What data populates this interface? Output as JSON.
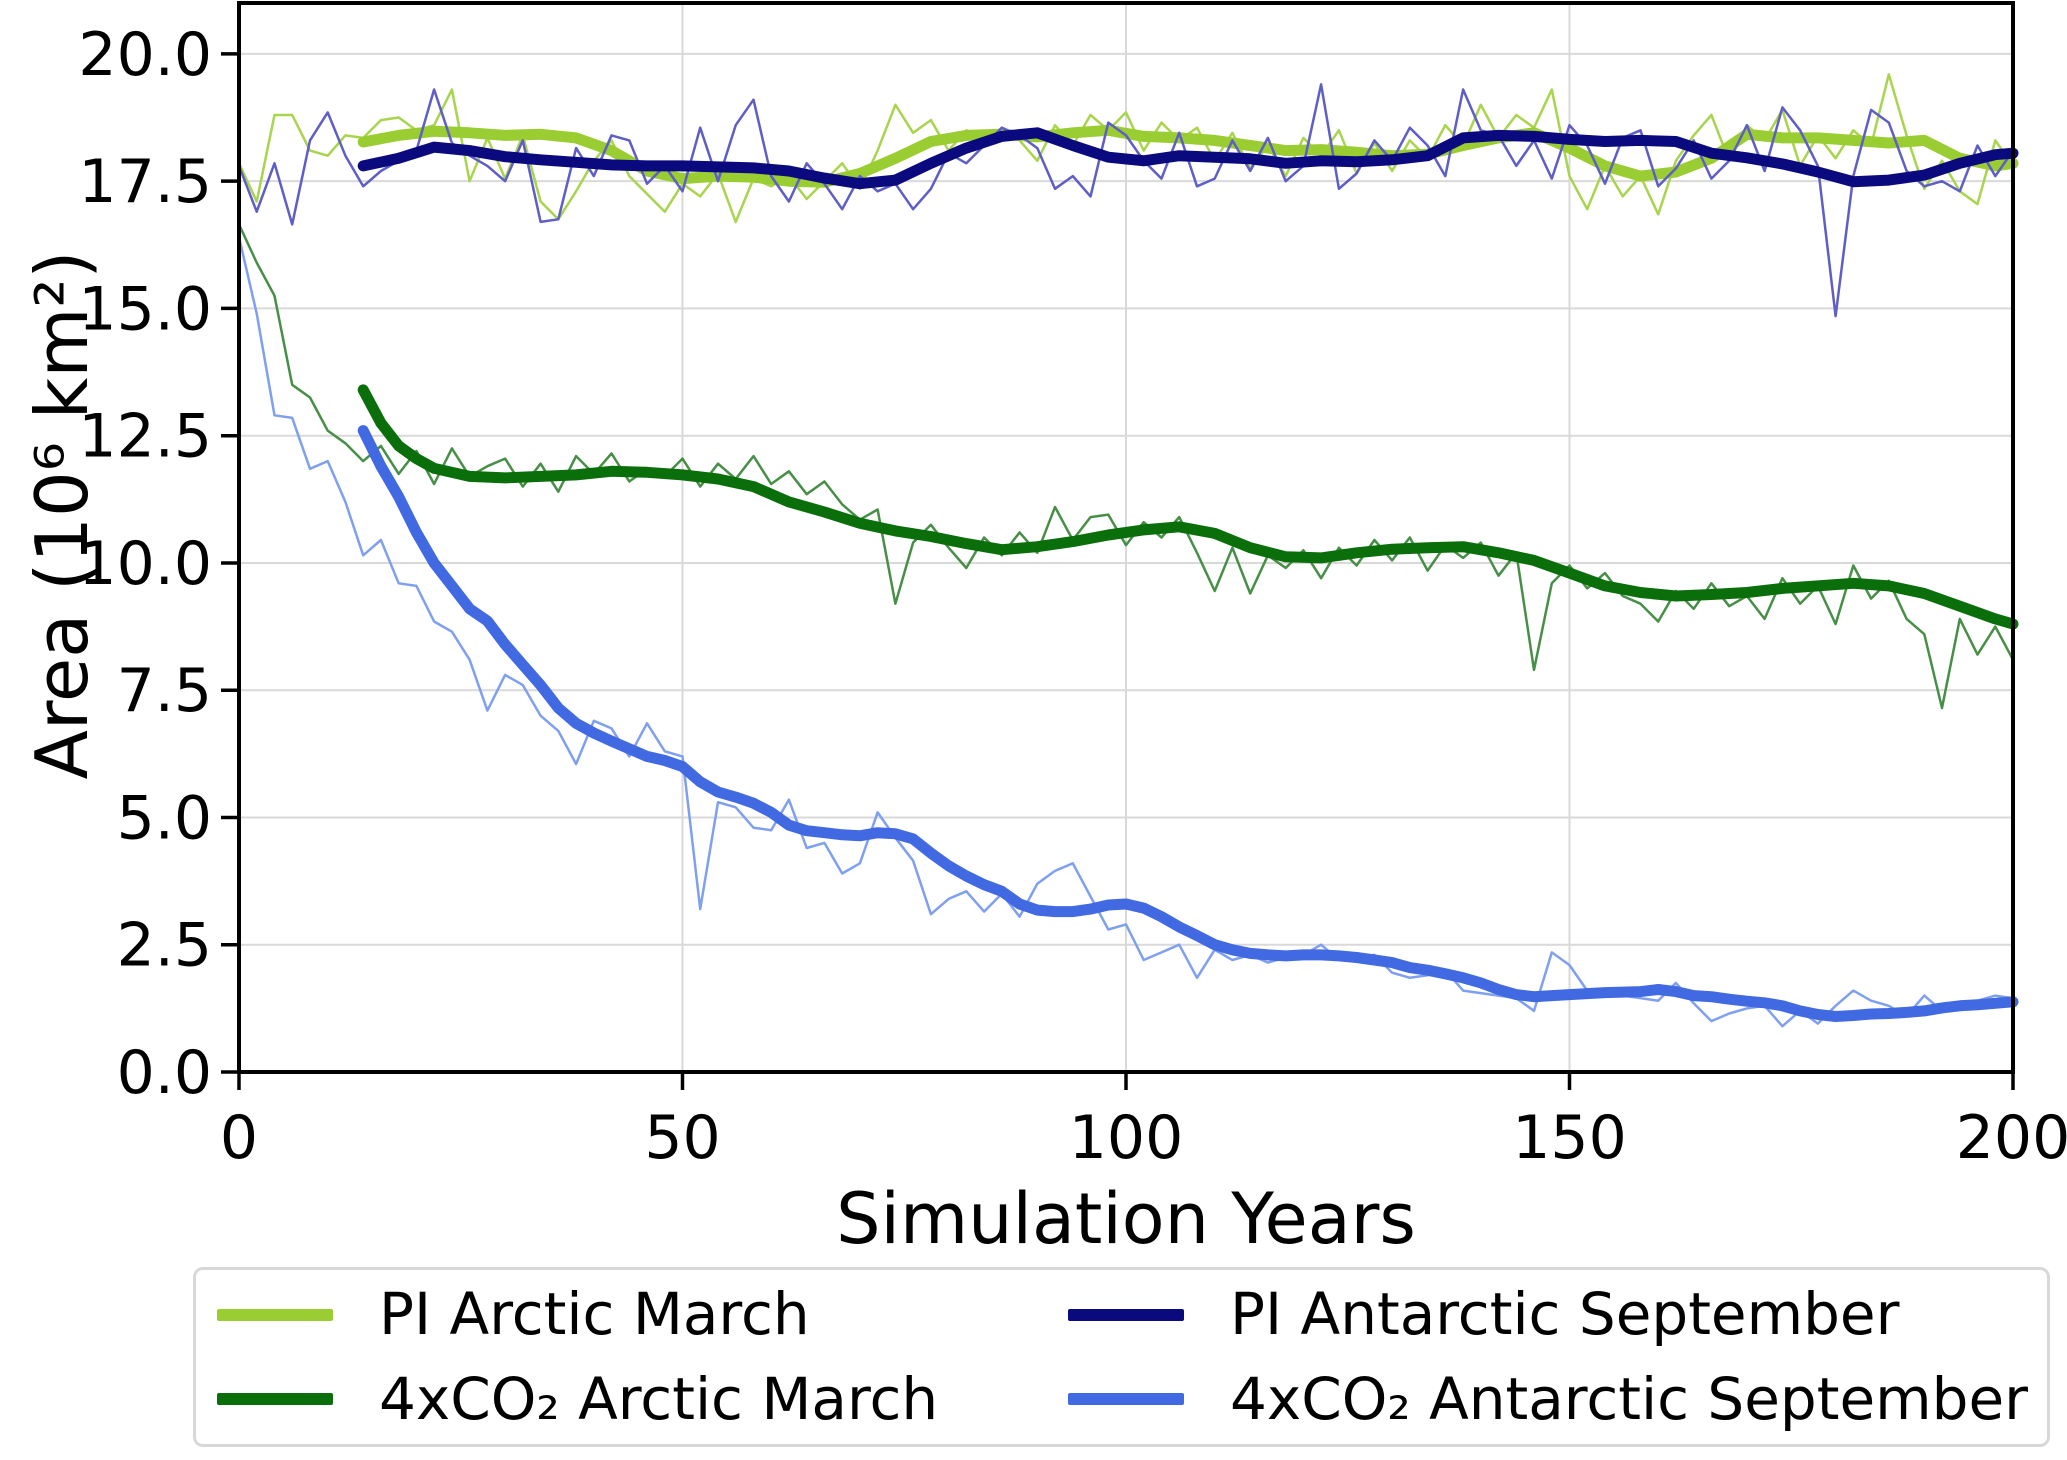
{
  "chart_data": {
    "type": "line",
    "title": "",
    "xlabel": "Simulation Years",
    "ylabel": "Area (10⁶ km²)",
    "xlim": [
      0,
      200
    ],
    "ylim": [
      0,
      21
    ],
    "grid": true,
    "grid_color": "#d9d9d9",
    "spine_color": "#000000",
    "background": "#ffffff",
    "legend_position": "below-chart, 2 columns",
    "xticks": {
      "values": [
        0,
        50,
        100,
        150,
        200
      ],
      "labels": [
        "0",
        "50",
        "100",
        "150",
        "200"
      ]
    },
    "yticks": {
      "values": [
        0,
        2.5,
        5,
        7.5,
        10,
        12.5,
        15,
        17.5,
        20
      ],
      "labels": [
        "0.0",
        "2.5",
        "5.0",
        "7.5",
        "10.0",
        "12.5",
        "15.0",
        "17.5",
        "20.0"
      ]
    },
    "legend": [
      {
        "label": "PI Arctic March",
        "color": "#9ACD32"
      },
      {
        "label": "4xCO₂ Arctic March",
        "color": "#0A6E0A"
      },
      {
        "label": "PI Antarctic September",
        "color": "#0A0A7E"
      },
      {
        "label": "4xCO₂ Antarctic September",
        "color": "#4169E1"
      }
    ],
    "series": [
      {
        "name": "PI Arctic March (annual)",
        "color": "#a8d44e",
        "width": 2.5,
        "role": "annual",
        "x_start": 0,
        "x_step": 2,
        "y": [
          17.85,
          17.1,
          18.8,
          18.8,
          18.1,
          18.0,
          18.4,
          18.35,
          18.7,
          18.75,
          18.5,
          18.6,
          19.3,
          17.5,
          18.35,
          17.55,
          18.4,
          17.1,
          16.75,
          17.3,
          17.9,
          18.3,
          17.6,
          17.25,
          16.9,
          17.45,
          17.2,
          17.65,
          16.7,
          17.55,
          17.4,
          17.6,
          17.15,
          17.5,
          17.85,
          17.35,
          18.1,
          19.0,
          18.45,
          18.7,
          18.1,
          18.5,
          18.25,
          18.55,
          18.3,
          17.9,
          18.6,
          18.2,
          18.8,
          18.5,
          18.85,
          18.1,
          18.65,
          18.3,
          18.55,
          17.9,
          18.45,
          17.75,
          18.2,
          17.6,
          18.35,
          18.0,
          18.5,
          17.65,
          18.25,
          17.7,
          18.3,
          17.95,
          18.6,
          18.2,
          19.0,
          18.35,
          18.8,
          18.55,
          19.3,
          17.6,
          16.95,
          17.8,
          17.2,
          17.6,
          16.85,
          17.9,
          18.4,
          18.8,
          17.9,
          18.6,
          18.3,
          18.9,
          17.8,
          18.4,
          17.95,
          18.5,
          18.2,
          19.6,
          18.4,
          17.35,
          17.9,
          17.3,
          17.05,
          18.3,
          17.8
        ]
      },
      {
        "name": "PI Arctic March (smoothed)",
        "color": "#9ACD32",
        "width": 11,
        "role": "smoothed",
        "x": [
          14,
          18,
          22,
          26,
          30,
          34,
          38,
          42,
          46,
          50,
          54,
          58,
          62,
          66,
          70,
          74,
          78,
          82,
          86,
          90,
          94,
          98,
          102,
          106,
          110,
          114,
          118,
          122,
          126,
          130,
          134,
          138,
          142,
          146,
          150,
          154,
          158,
          162,
          166,
          170,
          174,
          178,
          182,
          186,
          190,
          194,
          198,
          200
        ],
        "y": [
          18.27,
          18.4,
          18.48,
          18.45,
          18.4,
          18.42,
          18.35,
          18.1,
          17.7,
          17.55,
          17.6,
          17.58,
          17.5,
          17.48,
          17.65,
          17.95,
          18.28,
          18.4,
          18.42,
          18.37,
          18.45,
          18.5,
          18.38,
          18.35,
          18.3,
          18.2,
          18.1,
          18.12,
          18.07,
          18.0,
          18.03,
          18.2,
          18.35,
          18.45,
          18.15,
          17.8,
          17.6,
          17.68,
          17.95,
          18.42,
          18.35,
          18.35,
          18.3,
          18.25,
          18.3,
          17.95,
          17.8,
          17.85
        ]
      },
      {
        "name": "4xCO₂ Arctic March (annual)",
        "color": "#478f47",
        "width": 2.5,
        "role": "annual",
        "x_start": 0,
        "x_step": 2,
        "y": [
          16.65,
          15.9,
          15.25,
          13.5,
          13.25,
          12.6,
          12.35,
          12.0,
          12.3,
          11.75,
          12.2,
          11.55,
          12.25,
          11.7,
          11.9,
          12.05,
          11.5,
          11.95,
          11.4,
          12.1,
          11.75,
          12.15,
          11.6,
          11.85,
          11.7,
          12.05,
          11.5,
          11.95,
          11.65,
          12.1,
          11.55,
          11.8,
          11.35,
          11.6,
          11.15,
          10.85,
          11.05,
          9.2,
          10.4,
          10.75,
          10.3,
          9.9,
          10.5,
          10.15,
          10.6,
          10.2,
          11.1,
          10.45,
          10.9,
          10.95,
          10.35,
          10.8,
          10.5,
          10.9,
          10.2,
          9.45,
          10.3,
          9.4,
          10.15,
          9.9,
          10.25,
          9.7,
          10.3,
          9.95,
          10.45,
          10.05,
          10.5,
          9.85,
          10.35,
          10.1,
          10.4,
          9.75,
          10.2,
          7.9,
          9.6,
          9.95,
          9.5,
          9.8,
          9.35,
          9.2,
          8.85,
          9.45,
          9.1,
          9.6,
          9.15,
          9.35,
          8.9,
          9.7,
          9.2,
          9.55,
          8.8,
          9.95,
          9.3,
          9.65,
          8.9,
          8.6,
          7.15,
          8.9,
          8.2,
          8.75,
          8.1
        ]
      },
      {
        "name": "4xCO₂ Arctic March (smoothed)",
        "color": "#0A6E0A",
        "width": 11,
        "role": "smoothed",
        "x": [
          14,
          16,
          18,
          20,
          22,
          26,
          30,
          34,
          38,
          42,
          46,
          50,
          54,
          58,
          62,
          66,
          70,
          74,
          78,
          82,
          86,
          90,
          94,
          98,
          102,
          106,
          110,
          114,
          118,
          122,
          126,
          130,
          134,
          138,
          142,
          146,
          150,
          154,
          158,
          162,
          166,
          170,
          174,
          178,
          182,
          186,
          190,
          194,
          198,
          200
        ],
        "y": [
          13.4,
          12.75,
          12.3,
          12.05,
          11.86,
          11.7,
          11.67,
          11.7,
          11.73,
          11.8,
          11.78,
          11.73,
          11.65,
          11.5,
          11.2,
          11.0,
          10.78,
          10.63,
          10.52,
          10.38,
          10.26,
          10.32,
          10.42,
          10.55,
          10.65,
          10.71,
          10.58,
          10.3,
          10.12,
          10.1,
          10.2,
          10.27,
          10.3,
          10.32,
          10.2,
          10.05,
          9.8,
          9.55,
          9.42,
          9.35,
          9.38,
          9.42,
          9.5,
          9.55,
          9.6,
          9.55,
          9.4,
          9.15,
          8.9,
          8.8
        ]
      },
      {
        "name": "PI Antarctic September (annual)",
        "color": "#5e5ec6",
        "width": 2.5,
        "role": "annual",
        "x_start": 0,
        "x_step": 2,
        "y": [
          17.8,
          16.9,
          17.85,
          16.65,
          18.3,
          18.85,
          18.0,
          17.4,
          17.7,
          17.9,
          18.1,
          19.3,
          18.25,
          18.0,
          17.8,
          17.5,
          18.3,
          16.7,
          16.75,
          18.15,
          17.6,
          18.4,
          18.3,
          17.45,
          17.8,
          17.3,
          18.55,
          17.5,
          18.6,
          19.1,
          17.6,
          17.1,
          17.85,
          17.45,
          16.95,
          17.6,
          17.3,
          17.45,
          16.95,
          17.35,
          18.05,
          17.85,
          18.2,
          18.55,
          18.4,
          18.15,
          17.35,
          17.6,
          17.2,
          18.65,
          18.4,
          17.9,
          17.55,
          18.45,
          17.4,
          17.55,
          18.3,
          17.7,
          18.35,
          17.5,
          17.8,
          19.4,
          17.35,
          17.65,
          18.3,
          17.9,
          18.55,
          18.2,
          17.6,
          19.3,
          18.5,
          18.4,
          17.8,
          18.3,
          17.55,
          18.6,
          18.2,
          17.45,
          18.35,
          18.5,
          17.4,
          17.75,
          18.3,
          17.55,
          17.9,
          18.6,
          17.7,
          18.95,
          18.5,
          17.8,
          14.85,
          17.6,
          18.9,
          18.65,
          17.7,
          17.4,
          17.5,
          17.3,
          18.2,
          17.6,
          18.1
        ]
      },
      {
        "name": "PI Antarctic September (smoothed)",
        "color": "#0A0A7E",
        "width": 11,
        "role": "smoothed",
        "x": [
          14,
          18,
          22,
          26,
          30,
          34,
          38,
          42,
          46,
          50,
          54,
          58,
          62,
          66,
          70,
          74,
          78,
          82,
          86,
          90,
          94,
          98,
          102,
          106,
          110,
          114,
          118,
          122,
          126,
          130,
          134,
          138,
          142,
          146,
          150,
          154,
          158,
          162,
          166,
          170,
          174,
          178,
          182,
          186,
          190,
          194,
          198,
          200
        ],
        "y": [
          17.8,
          17.95,
          18.17,
          18.1,
          17.98,
          17.92,
          17.87,
          17.82,
          17.8,
          17.8,
          17.78,
          17.76,
          17.7,
          17.56,
          17.45,
          17.52,
          17.85,
          18.15,
          18.38,
          18.45,
          18.2,
          17.97,
          17.9,
          18.0,
          17.97,
          17.94,
          17.85,
          17.9,
          17.88,
          17.92,
          18.0,
          18.35,
          18.4,
          18.38,
          18.32,
          18.28,
          18.3,
          18.28,
          18.05,
          17.96,
          17.84,
          17.68,
          17.49,
          17.52,
          17.62,
          17.85,
          18.02,
          18.05
        ]
      },
      {
        "name": "4xCO₂ Antarctic September (annual)",
        "color": "#7f9ff0",
        "width": 2.5,
        "role": "annual",
        "x_start": 0,
        "x_step": 2,
        "y": [
          16.4,
          14.9,
          12.9,
          12.85,
          11.85,
          12.0,
          11.2,
          10.15,
          10.45,
          9.6,
          9.55,
          8.85,
          8.65,
          8.1,
          7.1,
          7.8,
          7.6,
          7.0,
          6.7,
          6.05,
          6.9,
          6.75,
          6.2,
          6.85,
          6.3,
          6.2,
          3.2,
          5.3,
          5.2,
          4.8,
          4.75,
          5.35,
          4.4,
          4.5,
          3.9,
          4.1,
          5.1,
          4.6,
          4.15,
          3.1,
          3.4,
          3.55,
          3.15,
          3.5,
          3.05,
          3.7,
          3.95,
          4.1,
          3.45,
          2.8,
          2.9,
          2.2,
          2.35,
          2.5,
          1.85,
          2.4,
          2.2,
          2.3,
          2.15,
          2.25,
          2.3,
          2.5,
          2.2,
          2.25,
          2.3,
          1.95,
          1.85,
          1.9,
          2.0,
          1.6,
          1.55,
          1.5,
          1.45,
          1.2,
          2.35,
          2.1,
          1.6,
          1.55,
          1.5,
          1.45,
          1.4,
          1.75,
          1.35,
          1.0,
          1.15,
          1.25,
          1.3,
          0.9,
          1.2,
          0.95,
          1.3,
          1.6,
          1.4,
          1.3,
          1.1,
          1.5,
          1.2,
          1.25,
          1.4,
          1.5,
          1.45
        ]
      },
      {
        "name": "4xCO₂ Antarctic September (smoothed)",
        "color": "#4169E1",
        "width": 11,
        "role": "smoothed",
        "x_start": 14,
        "x_step": 2,
        "y": [
          12.6,
          11.9,
          11.3,
          10.6,
          10.0,
          9.55,
          9.1,
          8.86,
          8.4,
          8.0,
          7.6,
          7.15,
          6.85,
          6.66,
          6.5,
          6.35,
          6.2,
          6.12,
          6.0,
          5.7,
          5.5,
          5.4,
          5.28,
          5.1,
          4.85,
          4.74,
          4.7,
          4.66,
          4.64,
          4.7,
          4.68,
          4.58,
          4.3,
          4.05,
          3.85,
          3.68,
          3.55,
          3.3,
          3.18,
          3.15,
          3.15,
          3.2,
          3.28,
          3.3,
          3.22,
          3.05,
          2.85,
          2.68,
          2.5,
          2.4,
          2.33,
          2.3,
          2.28,
          2.3,
          2.3,
          2.28,
          2.25,
          2.2,
          2.15,
          2.05,
          2.0,
          1.93,
          1.85,
          1.75,
          1.62,
          1.52,
          1.48,
          1.5,
          1.52,
          1.54,
          1.56,
          1.57,
          1.58,
          1.62,
          1.58,
          1.5,
          1.48,
          1.43,
          1.39,
          1.36,
          1.3,
          1.2,
          1.13,
          1.09,
          1.11,
          1.14,
          1.15,
          1.17,
          1.2,
          1.26,
          1.3,
          1.32,
          1.35,
          1.38
        ]
      }
    ]
  }
}
